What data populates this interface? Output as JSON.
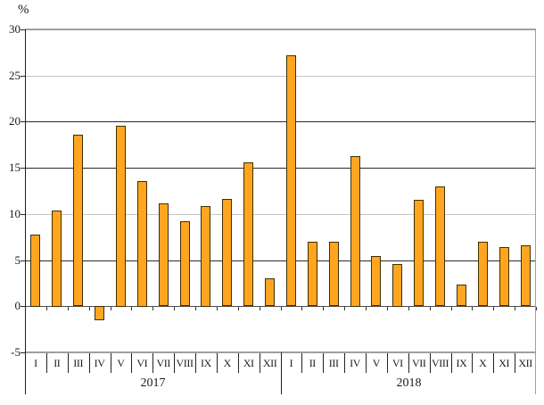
{
  "chart_data": {
    "type": "bar",
    "title": "",
    "ylabel": "%",
    "xlabel": "",
    "ylim": [
      -5,
      30
    ],
    "grid": true,
    "legend_position": "none",
    "ytick_values": [
      30,
      25,
      20,
      15,
      10,
      5,
      0,
      -5
    ],
    "ytick_shades": [
      "border",
      "light",
      "dark",
      "dark",
      "light",
      "dark",
      "axis",
      "border"
    ],
    "groups": [
      {
        "year": "2017",
        "categories": [
          "I",
          "II",
          "III",
          "IV",
          "V",
          "VI",
          "VII",
          "VIII",
          "IX",
          "X",
          "XI",
          "XII"
        ],
        "values": [
          7.8,
          10.4,
          18.6,
          -1.5,
          19.6,
          13.6,
          11.1,
          9.2,
          10.9,
          11.6,
          15.6,
          3.0
        ]
      },
      {
        "year": "2018",
        "categories": [
          "I",
          "II",
          "III",
          "IV",
          "V",
          "VI",
          "VII",
          "VIII",
          "IX",
          "X",
          "XI",
          "XII"
        ],
        "values": [
          27.2,
          7.0,
          7.0,
          16.3,
          5.4,
          4.6,
          11.5,
          13.0,
          2.3,
          7.0,
          6.4,
          6.6
        ]
      }
    ],
    "colors": {
      "bar_fill": "#FFA520",
      "bar_border": "#403000",
      "grid_dark": "#2a2a2a",
      "grid_light": "#c6c6c6",
      "plot_border": "#9f9f9f",
      "zero_axis": "#4d4d4d",
      "text": "#1a1a1a"
    }
  }
}
